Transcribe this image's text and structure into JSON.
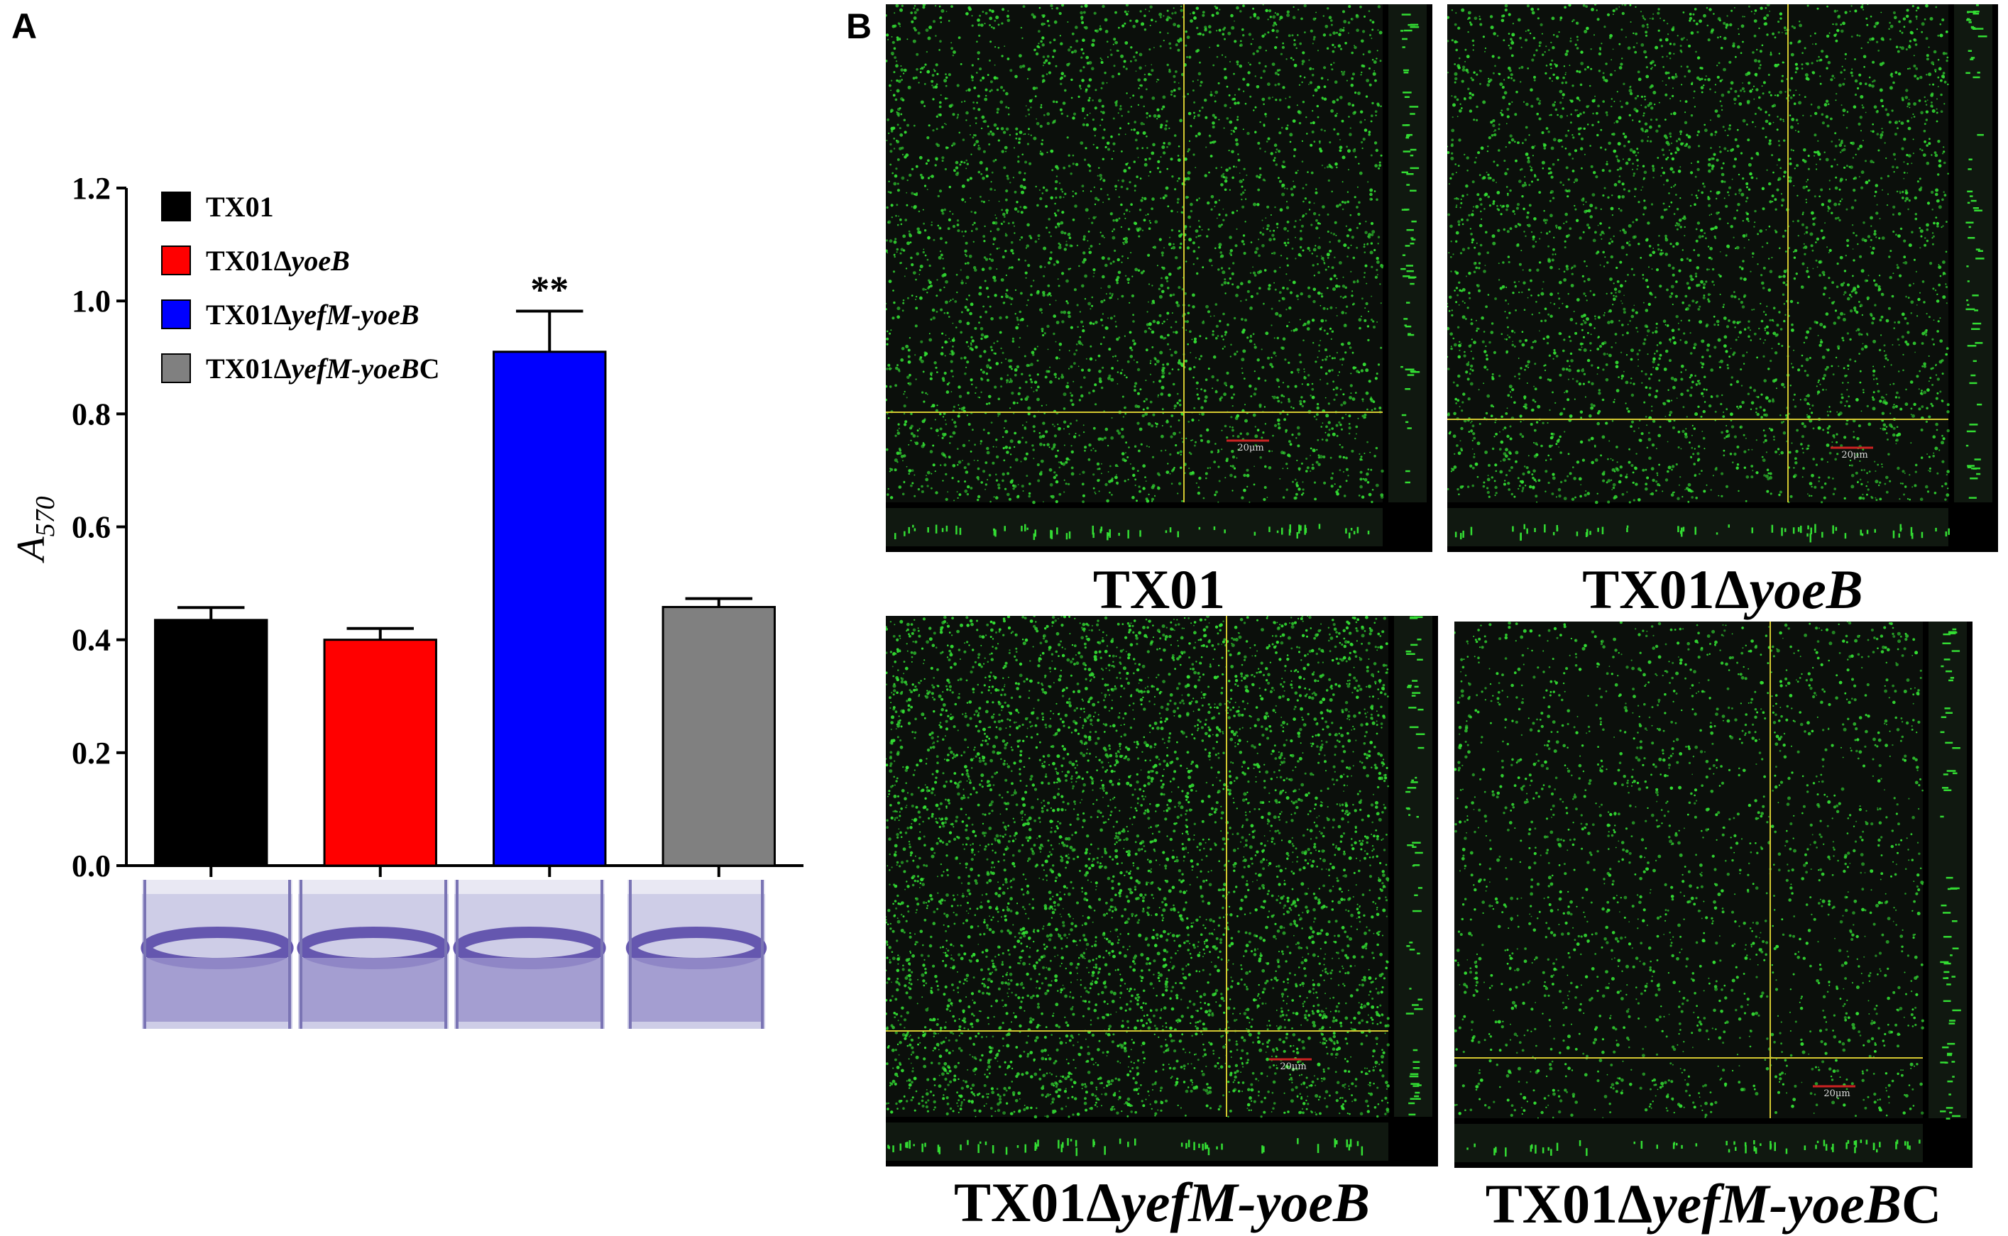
{
  "panels": {
    "a_label": "A",
    "b_label": "B"
  },
  "chart_data": {
    "type": "bar",
    "ylabel_main": "A",
    "ylabel_sub": "570",
    "ylim": [
      0,
      1.2
    ],
    "yticks": [
      "0.0",
      "0.2",
      "0.4",
      "0.6",
      "0.8",
      "1.0",
      "1.2"
    ],
    "grid": false,
    "legend_position": "top-left",
    "categories": [
      "TX01",
      "TX01ΔyoeB",
      "TX01ΔyefM-yoeB",
      "TX01ΔyefM-yoeBC"
    ],
    "legend": [
      {
        "prefix": "TX01",
        "delta": "",
        "italic": "",
        "suffix": ""
      },
      {
        "prefix": "TX01",
        "delta": "Δ",
        "italic": "yoeB",
        "suffix": ""
      },
      {
        "prefix": "TX01",
        "delta": "Δ",
        "italic": "yefM-yoeB",
        "suffix": ""
      },
      {
        "prefix": "TX01",
        "delta": "Δ",
        "italic": "yefM-yoeB",
        "suffix": "C"
      }
    ],
    "values": [
      0.435,
      0.4,
      0.91,
      0.458
    ],
    "errors": [
      0.022,
      0.02,
      0.072,
      0.015
    ],
    "colors": [
      "#000000",
      "#ff0000",
      "#0000ff",
      "#808080"
    ],
    "annotations": [
      "",
      "",
      "**",
      ""
    ]
  },
  "micrographs": [
    {
      "prefix": "TX01",
      "delta": "",
      "italic": "",
      "suffix": "",
      "scale_label": "20μm",
      "density": "medium"
    },
    {
      "prefix": "TX01",
      "delta": "Δ",
      "italic": "yoeB",
      "suffix": "",
      "scale_label": "20μm",
      "density": "medium"
    },
    {
      "prefix": "TX01",
      "delta": "Δ",
      "italic": "yefM-yoeB",
      "suffix": "",
      "scale_label": "20μm",
      "density": "high"
    },
    {
      "prefix": "TX01",
      "delta": "Δ",
      "italic": "yefM-yoeB",
      "suffix": "C",
      "scale_label": "20μm",
      "density": "low"
    }
  ],
  "colors": {
    "micro_bg": "#0b0f0b",
    "cell_green": "#33dd33",
    "crosshair": "#d4c830",
    "strip_bg": "#101810",
    "well_bg": "#c9c8e4",
    "well_stain": "#5a4aa8"
  }
}
